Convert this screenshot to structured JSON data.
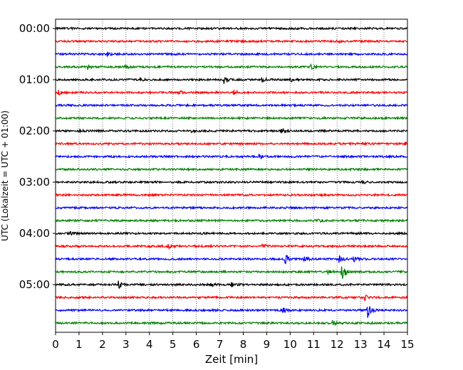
{
  "chart_data": {
    "type": "line",
    "title": "",
    "xlabel": "Zeit  [min]",
    "ylabel": "UTC (Lokalzeit = UTC + 01:00)",
    "xlim": [
      0,
      15
    ],
    "xticks": [
      "0",
      "1",
      "2",
      "3",
      "4",
      "5",
      "6",
      "7",
      "8",
      "9",
      "10",
      "11",
      "12",
      "13",
      "14",
      "15"
    ],
    "yticks": [
      "00:00",
      "01:00",
      "02:00",
      "03:00",
      "04:00",
      "05:00"
    ],
    "grid": "vertical dotted",
    "trace_colors": [
      "#000000",
      "#ff0000",
      "#0000ff",
      "#008000"
    ],
    "row_minutes": 15,
    "row_count": 24,
    "events": [
      {
        "row": 1,
        "minute": 12.0,
        "amplitude": 2
      },
      {
        "row": 2,
        "minute": 2.2,
        "amplitude": 3
      },
      {
        "row": 3,
        "minute": 1.4,
        "amplitude": 3
      },
      {
        "row": 3,
        "minute": 3.0,
        "amplitude": 2
      },
      {
        "row": 3,
        "minute": 10.9,
        "amplitude": 3
      },
      {
        "row": 4,
        "minute": 3.6,
        "amplitude": 2
      },
      {
        "row": 4,
        "minute": 7.2,
        "amplitude": 6
      },
      {
        "row": 4,
        "minute": 8.8,
        "amplitude": 3
      },
      {
        "row": 4,
        "minute": 10.0,
        "amplitude": 3
      },
      {
        "row": 5,
        "minute": 0.1,
        "amplitude": 4
      },
      {
        "row": 5,
        "minute": 5.2,
        "amplitude": 3
      },
      {
        "row": 5,
        "minute": 7.6,
        "amplitude": 3
      },
      {
        "row": 8,
        "minute": 1.0,
        "amplitude": 2
      },
      {
        "row": 8,
        "minute": 5.8,
        "amplitude": 2
      },
      {
        "row": 8,
        "minute": 9.6,
        "amplitude": 3
      },
      {
        "row": 9,
        "minute": 14.9,
        "amplitude": 3
      },
      {
        "row": 10,
        "minute": 8.7,
        "amplitude": 3
      },
      {
        "row": 12,
        "minute": 13.1,
        "amplitude": 2
      },
      {
        "row": 15,
        "minute": 11.2,
        "amplitude": 2
      },
      {
        "row": 16,
        "minute": 0.6,
        "amplitude": 2
      },
      {
        "row": 17,
        "minute": 4.8,
        "amplitude": 3
      },
      {
        "row": 17,
        "minute": 8.8,
        "amplitude": 4
      },
      {
        "row": 18,
        "minute": 9.8,
        "amplitude": 7
      },
      {
        "row": 18,
        "minute": 10.6,
        "amplitude": 4
      },
      {
        "row": 18,
        "minute": 12.1,
        "amplitude": 5
      },
      {
        "row": 18,
        "minute": 12.7,
        "amplitude": 4
      },
      {
        "row": 19,
        "minute": 12.2,
        "amplitude": 12
      },
      {
        "row": 19,
        "minute": 11.6,
        "amplitude": 2
      },
      {
        "row": 20,
        "minute": 2.7,
        "amplitude": 5
      },
      {
        "row": 20,
        "minute": 6.6,
        "amplitude": 3
      },
      {
        "row": 20,
        "minute": 7.5,
        "amplitude": 4
      },
      {
        "row": 21,
        "minute": 13.2,
        "amplitude": 3
      },
      {
        "row": 22,
        "minute": 9.7,
        "amplitude": 3
      },
      {
        "row": 22,
        "minute": 13.3,
        "amplitude": 10
      },
      {
        "row": 23,
        "minute": 11.8,
        "amplitude": 3
      }
    ]
  }
}
